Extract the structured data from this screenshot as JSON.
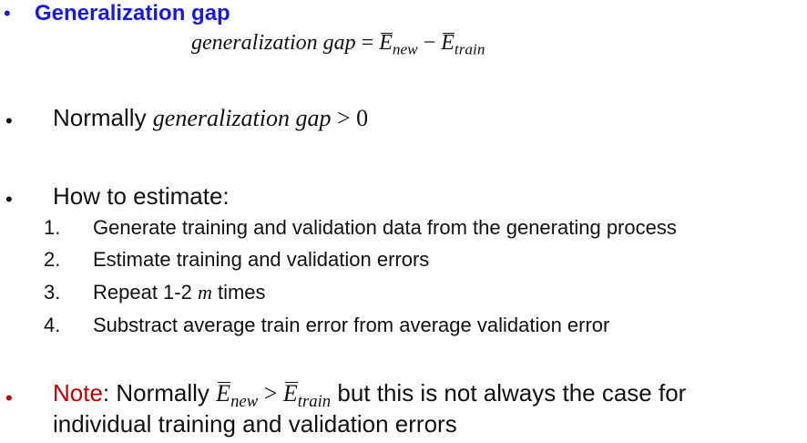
{
  "heading": {
    "bullet": "•",
    "title": "Generalization gap",
    "formula": {
      "lhs": "generalization gap",
      "equals": "=",
      "e1": "E",
      "e1_sub": "new",
      "minus": "−",
      "e2": "E",
      "e2_sub": "train"
    }
  },
  "point2": {
    "bullet": "•",
    "text": "Normally ",
    "math": "generalization gap",
    "gt": " > 0"
  },
  "point3": {
    "bullet": "•",
    "text": "How to estimate:",
    "steps": [
      {
        "num": "1.",
        "text": "Generate training and validation data from the generating process"
      },
      {
        "num": "2.",
        "text": "Estimate training and validation errors"
      },
      {
        "num": "3.",
        "pre": "Repeat 1-2 ",
        "var": "m",
        "post": " times"
      },
      {
        "num": "4.",
        "text": "Substract average train error from average validation error"
      }
    ]
  },
  "note": {
    "bullet": "•",
    "label": "Note",
    "colon": ": Normally ",
    "e1": "E",
    "e1_sub": "new",
    "gt": " > ",
    "e2": "E",
    "e2_sub": "train",
    "tail": " but this is not always the case for",
    "line2": "individual training and validation errors"
  },
  "colors": {
    "heading": "#1a1adb",
    "note": "#c00000",
    "text": "#111111"
  }
}
